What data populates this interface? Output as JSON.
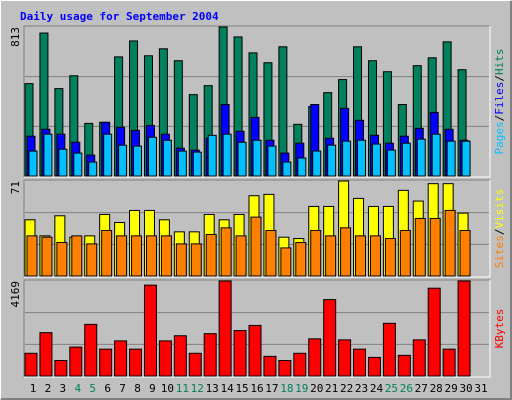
{
  "chart_data": {
    "type": "bar",
    "title": "Daily usage for September 2004",
    "categories": [
      "1",
      "2",
      "3",
      "4",
      "5",
      "6",
      "7",
      "8",
      "9",
      "10",
      "11",
      "12",
      "13",
      "14",
      "15",
      "16",
      "17",
      "18",
      "19",
      "20",
      "21",
      "22",
      "23",
      "24",
      "25",
      "26",
      "27",
      "28",
      "29",
      "30",
      "31"
    ],
    "category_colors": [
      "#000000",
      "#000000",
      "#000000",
      "#00805c",
      "#00805c",
      "#000000",
      "#000000",
      "#000000",
      "#000000",
      "#000000",
      "#00805c",
      "#00805c",
      "#000000",
      "#000000",
      "#000000",
      "#000000",
      "#000000",
      "#00805c",
      "#00805c",
      "#000000",
      "#000000",
      "#000000",
      "#000000",
      "#000000",
      "#00805c",
      "#00805c",
      "#000000",
      "#000000",
      "#000000",
      "#000000",
      "#000000"
    ],
    "legend_separator": "/",
    "panels": [
      {
        "ylim": [
          0,
          813
        ],
        "yticks": [
          813
        ],
        "series": [
          {
            "name": "Hits",
            "color": "#00805c",
            "values": [
              504,
              780,
              477,
              547,
              287,
              293,
              650,
              737,
              656,
              694,
              629,
              444,
              493,
              813,
              759,
              672,
              618,
              705,
              282,
              379,
              455,
              526,
              705,
              629,
              569,
              390,
              602,
              645,
              732,
              580,
              null
            ]
          },
          {
            "name": "Files",
            "color": "#0000ff",
            "values": [
              217,
              255,
              228,
              184,
              114,
              293,
              266,
              249,
              276,
              228,
              152,
              141,
              206,
              390,
              244,
              320,
              195,
              125,
              179,
              390,
              206,
              369,
              304,
              222,
              179,
              217,
              260,
              347,
              255,
              195,
              null
            ]
          },
          {
            "name": "Pages",
            "color": "#00c0ff",
            "values": [
              136,
              228,
              146,
              125,
              76,
              228,
              168,
              163,
              211,
              195,
              136,
              130,
              222,
              228,
              184,
              195,
              163,
              76,
              98,
              136,
              168,
              190,
              195,
              174,
              141,
              179,
              201,
              228,
              190,
              190,
              null
            ]
          }
        ]
      },
      {
        "ylim": [
          0,
          71
        ],
        "yticks": [
          71
        ],
        "series": [
          {
            "name": "Visits",
            "color": "#ffff00",
            "values": [
              42,
              30,
              45,
              29,
              30,
              46,
              40,
              49,
              49,
              42,
              33,
              33,
              46,
              42,
              46,
              60,
              61,
              29,
              28,
              52,
              52,
              71,
              58,
              52,
              52,
              64,
              56,
              69,
              69,
              47,
              null
            ]
          },
          {
            "name": "Sites",
            "color": "#ff8000",
            "values": [
              30,
              29,
              25,
              30,
              24,
              34,
              30,
              30,
              30,
              30,
              24,
              24,
              31,
              36,
              30,
              44,
              34,
              21,
              25,
              34,
              30,
              36,
              30,
              30,
              28,
              34,
              43,
              43,
              49,
              34,
              null
            ]
          }
        ]
      },
      {
        "ylim": [
          0,
          4169
        ],
        "yticks": [
          4169
        ],
        "series": [
          {
            "name": "KBytes",
            "color": "#ff0000",
            "values": [
              997,
              1903,
              680,
              1269,
              2266,
              1178,
              1541,
              1178,
              3988,
              1541,
              1767,
              997,
              1858,
              4169,
              1994,
              2220,
              861,
              680,
              997,
              1631,
              3353,
              1586,
              1178,
              816,
              2311,
              906,
              1586,
              3852,
              1178,
              4169,
              null
            ]
          }
        ]
      }
    ]
  }
}
